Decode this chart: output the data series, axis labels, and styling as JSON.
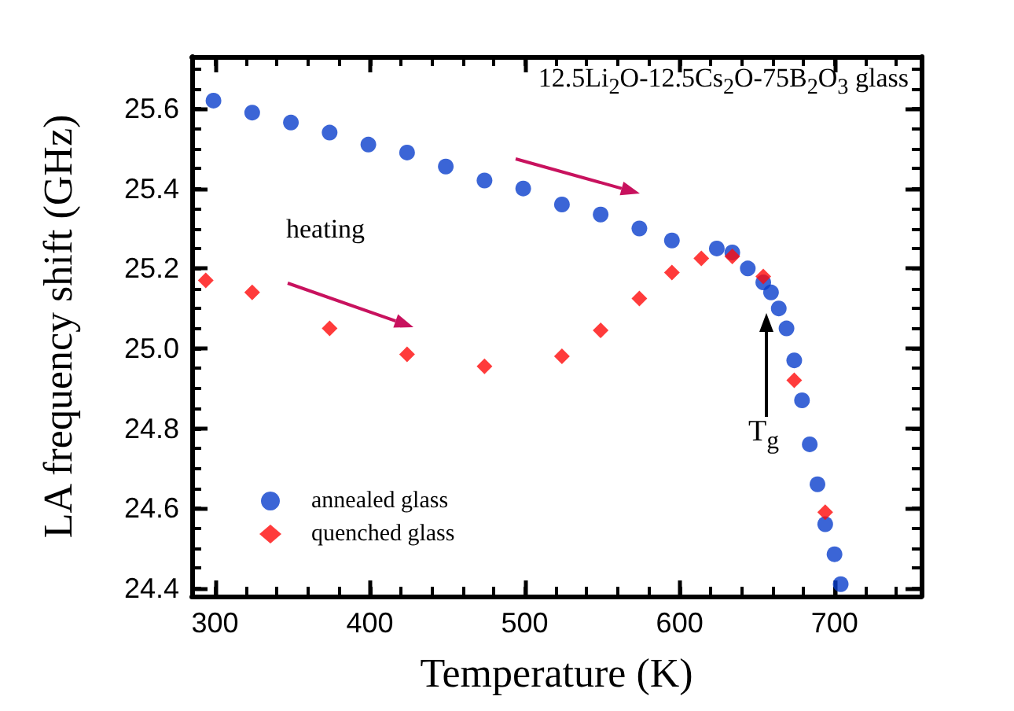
{
  "chart_data": {
    "type": "scatter",
    "xlabel": "Temperature (K)",
    "ylabel": "LA frequency shift (GHz)",
    "xlim": [
      285,
      756
    ],
    "xticks": [
      300,
      400,
      500,
      600,
      700
    ],
    "ylim": [
      24.38,
      25.73
    ],
    "yticks": [
      24.4,
      24.6,
      24.8,
      {
        "value": 25,
        "label": "25.0"
      },
      25.2,
      25.4,
      25.6
    ],
    "grid": false,
    "legend": "bottom left",
    "annotations": [
      "12.5Li$_{2}$O-12.5Cs$_{2}$O-75B$_{2}$O$_{3}$ glass",
      "heating",
      "T$_{g}$"
    ],
    "series": [
      {
        "name": "annealed glass",
        "color": "#0a3fcc",
        "marker": "circle",
        "x": [
          299,
          324,
          349,
          374,
          399,
          424,
          449,
          474,
          499,
          524,
          549,
          574,
          595,
          624,
          634,
          644,
          654,
          659,
          664,
          669,
          674,
          679,
          684,
          689,
          694,
          700,
          704
        ],
        "values": [
          25.62,
          25.59,
          25.565,
          25.54,
          25.51,
          25.49,
          25.455,
          25.42,
          25.4,
          25.36,
          25.335,
          25.3,
          25.27,
          25.25,
          25.24,
          25.2,
          25.165,
          25.14,
          25.1,
          25.05,
          24.97,
          24.87,
          24.76,
          24.66,
          24.56,
          24.485,
          24.41
        ]
      },
      {
        "name": "quenched glass",
        "color": "#ff0a0a",
        "marker": "diamond",
        "x": [
          294,
          324,
          374,
          424,
          474,
          524,
          549,
          574,
          595,
          614,
          634,
          654,
          674,
          694
        ],
        "values": [
          25.17,
          25.14,
          25.05,
          24.985,
          24.955,
          24.98,
          25.045,
          25.125,
          25.19,
          25.225,
          25.23,
          25.18,
          24.92,
          24.59
        ]
      }
    ]
  }
}
